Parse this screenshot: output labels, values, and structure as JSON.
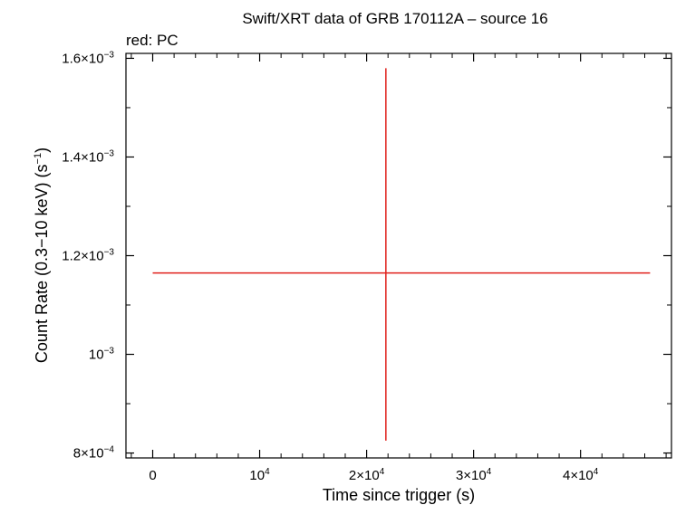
{
  "chart_data": {
    "type": "scatter",
    "title": "Swift/XRT data of GRB 170112A – source 16",
    "subtitle": "red: PC",
    "xlabel": "Time since trigger (s)",
    "ylabel_main": "Count Rate (0.3−10 keV) (s",
    "ylabel_sup": "−1",
    "ylabel_end": ")",
    "xlim": [
      -2500,
      48500
    ],
    "ylim": [
      0.00079,
      0.00161
    ],
    "x_ticks": [
      {
        "value": 0,
        "base": "0",
        "exp": ""
      },
      {
        "value": 10000,
        "base": "10",
        "exp": "4"
      },
      {
        "value": 20000,
        "base": "2×10",
        "exp": "4"
      },
      {
        "value": 30000,
        "base": "3×10",
        "exp": "4"
      },
      {
        "value": 40000,
        "base": "4×10",
        "exp": "4"
      }
    ],
    "y_ticks": [
      {
        "value": 0.0008,
        "base": "8×10",
        "exp": "−4"
      },
      {
        "value": 0.001,
        "base": "10",
        "exp": "−3"
      },
      {
        "value": 0.0012,
        "base": "1.2×10",
        "exp": "−3"
      },
      {
        "value": 0.0014,
        "base": "1.4×10",
        "exp": "−3"
      },
      {
        "value": 0.0016,
        "base": "1.6×10",
        "exp": "−3"
      }
    ],
    "series": [
      {
        "color": "#e0201b",
        "points": [
          {
            "x": 21800,
            "x_low": 0,
            "x_high": 46500,
            "y": 0.001165,
            "y_low": 0.000825,
            "y_high": 0.00158
          }
        ]
      }
    ],
    "grid": false
  }
}
